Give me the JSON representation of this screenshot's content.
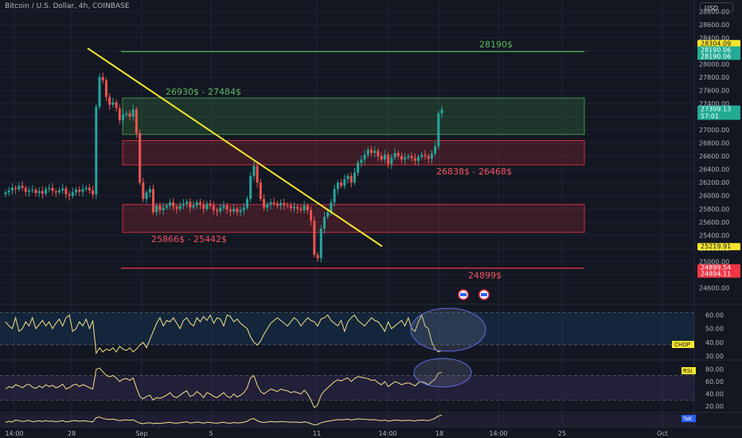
{
  "header": {
    "title": "Bitcoin / U.S. Dollar, 4h, COINBASE",
    "currency": "USD"
  },
  "colors": {
    "background": "#131722",
    "up": "#26a69a",
    "down": "#ef5350",
    "trendline": "#f7e52d",
    "resistance": "#4caf50",
    "support": "#f23645",
    "oscillator": "#f5e08a",
    "axis_text": "#b2b5be"
  },
  "chart_data": [
    {
      "type": "candlestick",
      "title": "Bitcoin / U.S. Dollar, 4h, COINBASE",
      "ylim": [
        24400,
        28900
      ],
      "y_ticks": [
        24600,
        24800,
        25000,
        25200,
        25400,
        25600,
        25800,
        26000,
        26200,
        26400,
        26600,
        26800,
        27000,
        27200,
        27400,
        27600,
        27800,
        28000,
        28200,
        28400,
        28600,
        28800
      ],
      "x_ticks": [
        "14:00",
        "28",
        "Sep",
        "5",
        "11",
        "14:00",
        "18",
        "14:00",
        "25",
        "Oct"
      ],
      "price_badges": [
        {
          "value": "28304.09",
          "style": "yellow"
        },
        {
          "value": "28190.06",
          "style": "green"
        },
        {
          "value": "28190.06",
          "style": "green"
        },
        {
          "value": "27309.13",
          "style": "green"
        },
        {
          "value": "57:01",
          "style": "green"
        },
        {
          "value": "25219.91",
          "style": "yellow"
        },
        {
          "value": "24899.54",
          "style": "red"
        },
        {
          "value": "24894.11",
          "style": "red"
        }
      ],
      "levels": [
        {
          "label": "28190$",
          "value": 28190,
          "kind": "resistance"
        },
        {
          "label": "24899$",
          "value": 24899,
          "kind": "support"
        }
      ],
      "zones": [
        {
          "label": "26930$ - 27484$",
          "low": 26930,
          "high": 27484,
          "kind": "demand"
        },
        {
          "label": "26838$ - 26468$",
          "low": 26468,
          "high": 26838,
          "kind": "supply"
        },
        {
          "label": "25866$ - 25442$",
          "low": 25442,
          "high": 25866,
          "kind": "supply"
        }
      ],
      "trendline": {
        "from": {
          "date": "Aug 28",
          "price": 28240
        },
        "to": {
          "date": "Sep 13",
          "price": 25230
        }
      },
      "closes": [
        26050,
        26080,
        26120,
        26100,
        26150,
        26120,
        26060,
        26080,
        26090,
        26040,
        26070,
        26030,
        26100,
        26120,
        26070,
        26050,
        26080,
        26110,
        26020,
        26000,
        26050,
        26090,
        26060,
        26100,
        26120,
        26080,
        26020,
        27350,
        27800,
        27750,
        27500,
        27380,
        27420,
        27330,
        27150,
        27230,
        27250,
        27200,
        27310,
        26950,
        26200,
        25950,
        26050,
        26100,
        25750,
        25850,
        25780,
        25820,
        25850,
        25900,
        25830,
        25800,
        25850,
        25880,
        25910,
        25820,
        25850,
        25900,
        25860,
        25800,
        25880,
        25850,
        25780,
        25760,
        25820,
        25850,
        25790,
        25760,
        25800,
        25750,
        25780,
        25820,
        25950,
        26300,
        26450,
        26200,
        25950,
        25820,
        25870,
        25900,
        25880,
        25850,
        25890,
        25860,
        25850,
        25810,
        25830,
        25800,
        25780,
        25850,
        25780,
        25620,
        25100,
        25050,
        25500,
        25680,
        25750,
        25900,
        26100,
        26200,
        26150,
        26250,
        26300,
        26200,
        26350,
        26500,
        26550,
        26620,
        26700,
        26650,
        26680,
        26600,
        26550,
        26620,
        26480,
        26580,
        26650,
        26600,
        26550,
        26580,
        26600,
        26570,
        26530,
        26590,
        26620,
        26600,
        26560,
        26640,
        26750,
        27250,
        27309
      ],
      "series": [
        {
          "name": "CHOP",
          "ylim": [
            30,
            65
          ],
          "y_ticks": [
            30,
            40,
            50,
            60
          ],
          "bands": [
            38.2,
            61.8
          ],
          "last": 33,
          "values": [
            55,
            52,
            50,
            58,
            48,
            50,
            55,
            52,
            58,
            50,
            53,
            56,
            52,
            55,
            50,
            54,
            57,
            52,
            58,
            60,
            48,
            50,
            55,
            52,
            57,
            50,
            56,
            32,
            36,
            33,
            35,
            34,
            36,
            33,
            37,
            35,
            34,
            36,
            33,
            35,
            38,
            40,
            36,
            42,
            48,
            54,
            58,
            52,
            56,
            55,
            58,
            54,
            50,
            56,
            58,
            54,
            52,
            58,
            55,
            59,
            56,
            60,
            54,
            58,
            57,
            52,
            60,
            59,
            55,
            57,
            54,
            52,
            50,
            44,
            40,
            38,
            41,
            46,
            50,
            54,
            56,
            58,
            56,
            54,
            52,
            55,
            58,
            56,
            52,
            55,
            58,
            56,
            55,
            52,
            57,
            58,
            60,
            56,
            54,
            52,
            56,
            48,
            55,
            58,
            60,
            56,
            54,
            52,
            55,
            58,
            56,
            55,
            52,
            48,
            55,
            50,
            52,
            54,
            56,
            52,
            58,
            50,
            48,
            55,
            60,
            52,
            50,
            40,
            35,
            33,
            34
          ]
        },
        {
          "name": "RSI",
          "ylim": [
            15,
            90
          ],
          "y_ticks": [
            20,
            40,
            60,
            80
          ],
          "bands": [
            30,
            70
          ],
          "last": 75,
          "values": [
            48,
            52,
            50,
            55,
            53,
            50,
            54,
            56,
            51,
            49,
            53,
            50,
            55,
            52,
            54,
            50,
            52,
            56,
            48,
            50,
            54,
            56,
            52,
            55,
            53,
            50,
            48,
            80,
            82,
            76,
            70,
            68,
            70,
            66,
            60,
            64,
            65,
            62,
            66,
            50,
            36,
            32,
            36,
            38,
            30,
            34,
            33,
            35,
            38,
            42,
            36,
            34,
            38,
            42,
            45,
            36,
            38,
            44,
            40,
            34,
            42,
            40,
            36,
            34,
            38,
            42,
            36,
            34,
            40,
            35,
            38,
            42,
            50,
            66,
            70,
            54,
            44,
            40,
            44,
            48,
            46,
            44,
            48,
            46,
            45,
            42,
            44,
            42,
            40,
            46,
            40,
            30,
            18,
            22,
            38,
            45,
            50,
            55,
            60,
            63,
            61,
            64,
            66,
            60,
            65,
            68,
            67,
            66,
            65,
            62,
            63,
            58,
            55,
            60,
            52,
            56,
            60,
            58,
            55,
            57,
            58,
            56,
            53,
            58,
            60,
            58,
            55,
            60,
            64,
            74,
            75
          ]
        },
        {
          "name": "%K",
          "ylim": [
            0,
            100
          ],
          "y_ticks": [],
          "last": 90,
          "values": [
            30,
            40,
            35,
            50,
            45,
            38,
            42,
            48,
            36,
            40,
            44,
            38,
            46,
            40,
            42,
            36,
            40,
            46,
            34,
            38,
            44,
            46,
            40,
            44,
            42,
            38,
            35,
            70,
            75,
            65,
            58,
            55,
            58,
            52,
            45,
            50,
            52,
            48,
            52,
            38,
            25,
            20,
            25,
            28,
            20,
            24,
            22,
            26,
            28,
            32,
            26,
            24,
            28,
            32,
            36,
            26,
            28,
            34,
            30,
            24,
            32,
            30,
            26,
            24,
            28,
            32,
            26,
            24,
            30,
            25,
            28,
            32,
            40,
            58,
            62,
            44,
            34,
            30,
            34,
            38,
            36,
            34,
            38,
            36,
            35,
            32,
            34,
            32,
            30,
            36,
            30,
            20,
            10,
            14,
            28,
            35,
            40,
            45,
            50,
            54,
            52,
            55,
            58,
            50,
            56,
            60,
            58,
            56,
            55,
            52,
            53,
            48,
            45,
            50,
            42,
            46,
            50,
            48,
            45,
            47,
            48,
            46,
            43,
            48,
            50,
            48,
            45,
            55,
            65,
            85,
            90
          ]
        }
      ]
    }
  ]
}
